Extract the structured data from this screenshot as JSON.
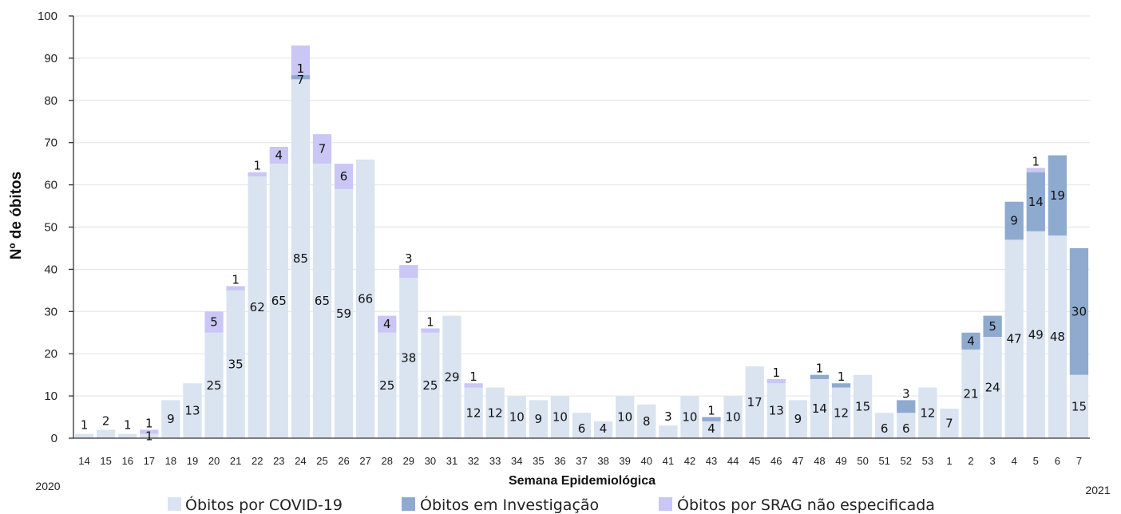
{
  "chart_data": {
    "type": "bar",
    "stacked": true,
    "title": "",
    "xlabel": "Semana Epidemiológica",
    "ylabel": "Nº de óbitos",
    "ylim": [
      0,
      100
    ],
    "yticks": [
      0,
      10,
      20,
      30,
      40,
      50,
      60,
      70,
      80,
      90,
      100
    ],
    "grid": true,
    "legend_position": "bottom",
    "year_labels": {
      "start": "2020",
      "end": "2021"
    },
    "categories": [
      "14",
      "15",
      "16",
      "17",
      "18",
      "19",
      "20",
      "21",
      "22",
      "23",
      "24",
      "25",
      "26",
      "27",
      "28",
      "29",
      "30",
      "31",
      "32",
      "33",
      "34",
      "35",
      "36",
      "37",
      "38",
      "39",
      "40",
      "41",
      "42",
      "43",
      "44",
      "45",
      "46",
      "47",
      "48",
      "49",
      "50",
      "51",
      "52",
      "53",
      "1",
      "2",
      "3",
      "4",
      "5",
      "6",
      "7"
    ],
    "series": [
      {
        "name": "Óbitos por COVID-19",
        "color": "#dae3f0",
        "values": [
          1,
          2,
          1,
          1,
          9,
          13,
          25,
          35,
          62,
          65,
          85,
          65,
          59,
          66,
          25,
          38,
          25,
          29,
          12,
          12,
          10,
          9,
          10,
          6,
          4,
          10,
          8,
          3,
          10,
          4,
          10,
          17,
          13,
          9,
          14,
          12,
          15,
          6,
          6,
          12,
          7,
          21,
          24,
          47,
          49,
          48,
          15
        ]
      },
      {
        "name": "Óbitos em Investigação",
        "color": "#8eaacf",
        "values": [
          0,
          0,
          0,
          0,
          0,
          0,
          0,
          0,
          0,
          0,
          1,
          0,
          0,
          0,
          0,
          0,
          0,
          0,
          0,
          0,
          0,
          0,
          0,
          0,
          0,
          0,
          0,
          0,
          0,
          1,
          0,
          0,
          0,
          0,
          1,
          1,
          0,
          0,
          3,
          0,
          0,
          4,
          5,
          9,
          14,
          19,
          30
        ]
      },
      {
        "name": "Óbitos por SRAG não especificada",
        "color": "#cac6f5",
        "values": [
          0,
          0,
          0,
          1,
          0,
          0,
          5,
          1,
          1,
          4,
          7,
          7,
          6,
          0,
          4,
          3,
          1,
          0,
          1,
          0,
          0,
          0,
          0,
          0,
          0,
          0,
          0,
          0,
          0,
          0,
          0,
          0,
          1,
          0,
          0,
          0,
          0,
          0,
          0,
          0,
          0,
          0,
          0,
          0,
          1,
          0,
          0
        ]
      }
    ]
  }
}
